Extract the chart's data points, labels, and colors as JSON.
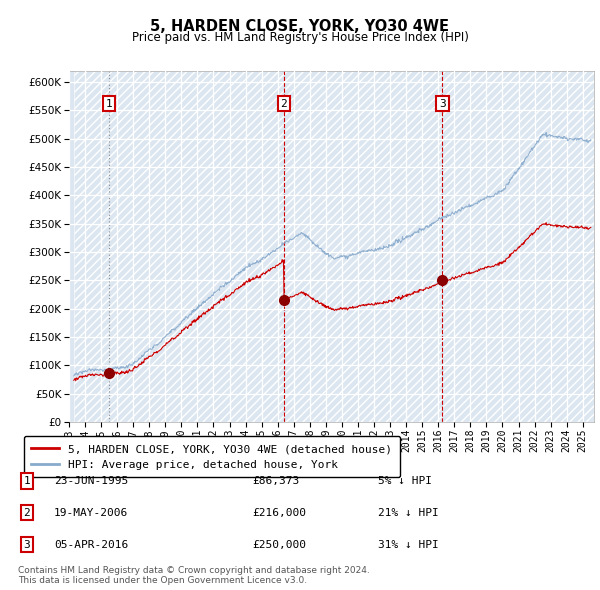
{
  "title": "5, HARDEN CLOSE, YORK, YO30 4WE",
  "subtitle": "Price paid vs. HM Land Registry's House Price Index (HPI)",
  "ylim": [
    0,
    620000
  ],
  "xlim_start": 1993.3,
  "xlim_end": 2025.7,
  "plot_bg": "#dce6f1",
  "sale_color": "#cc0000",
  "hpi_color": "#88aacc",
  "sales": [
    {
      "date_num": 1995.47,
      "price": 86373,
      "label": "1"
    },
    {
      "date_num": 2006.38,
      "price": 216000,
      "label": "2"
    },
    {
      "date_num": 2016.26,
      "price": 250000,
      "label": "3"
    }
  ],
  "vline_dates": [
    1995.47,
    2006.38,
    2016.26
  ],
  "vline_styles": [
    "dotted_gray",
    "red_dashed",
    "red_dashed"
  ],
  "legend_sale_label": "5, HARDEN CLOSE, YORK, YO30 4WE (detached house)",
  "legend_hpi_label": "HPI: Average price, detached house, York",
  "table_data": [
    [
      "1",
      "23-JUN-1995",
      "£86,373",
      "5% ↓ HPI"
    ],
    [
      "2",
      "19-MAY-2006",
      "£216,000",
      "21% ↓ HPI"
    ],
    [
      "3",
      "05-APR-2016",
      "£250,000",
      "31% ↓ HPI"
    ]
  ],
  "footnote": "Contains HM Land Registry data © Crown copyright and database right 2024.\nThis data is licensed under the Open Government Licence v3.0."
}
